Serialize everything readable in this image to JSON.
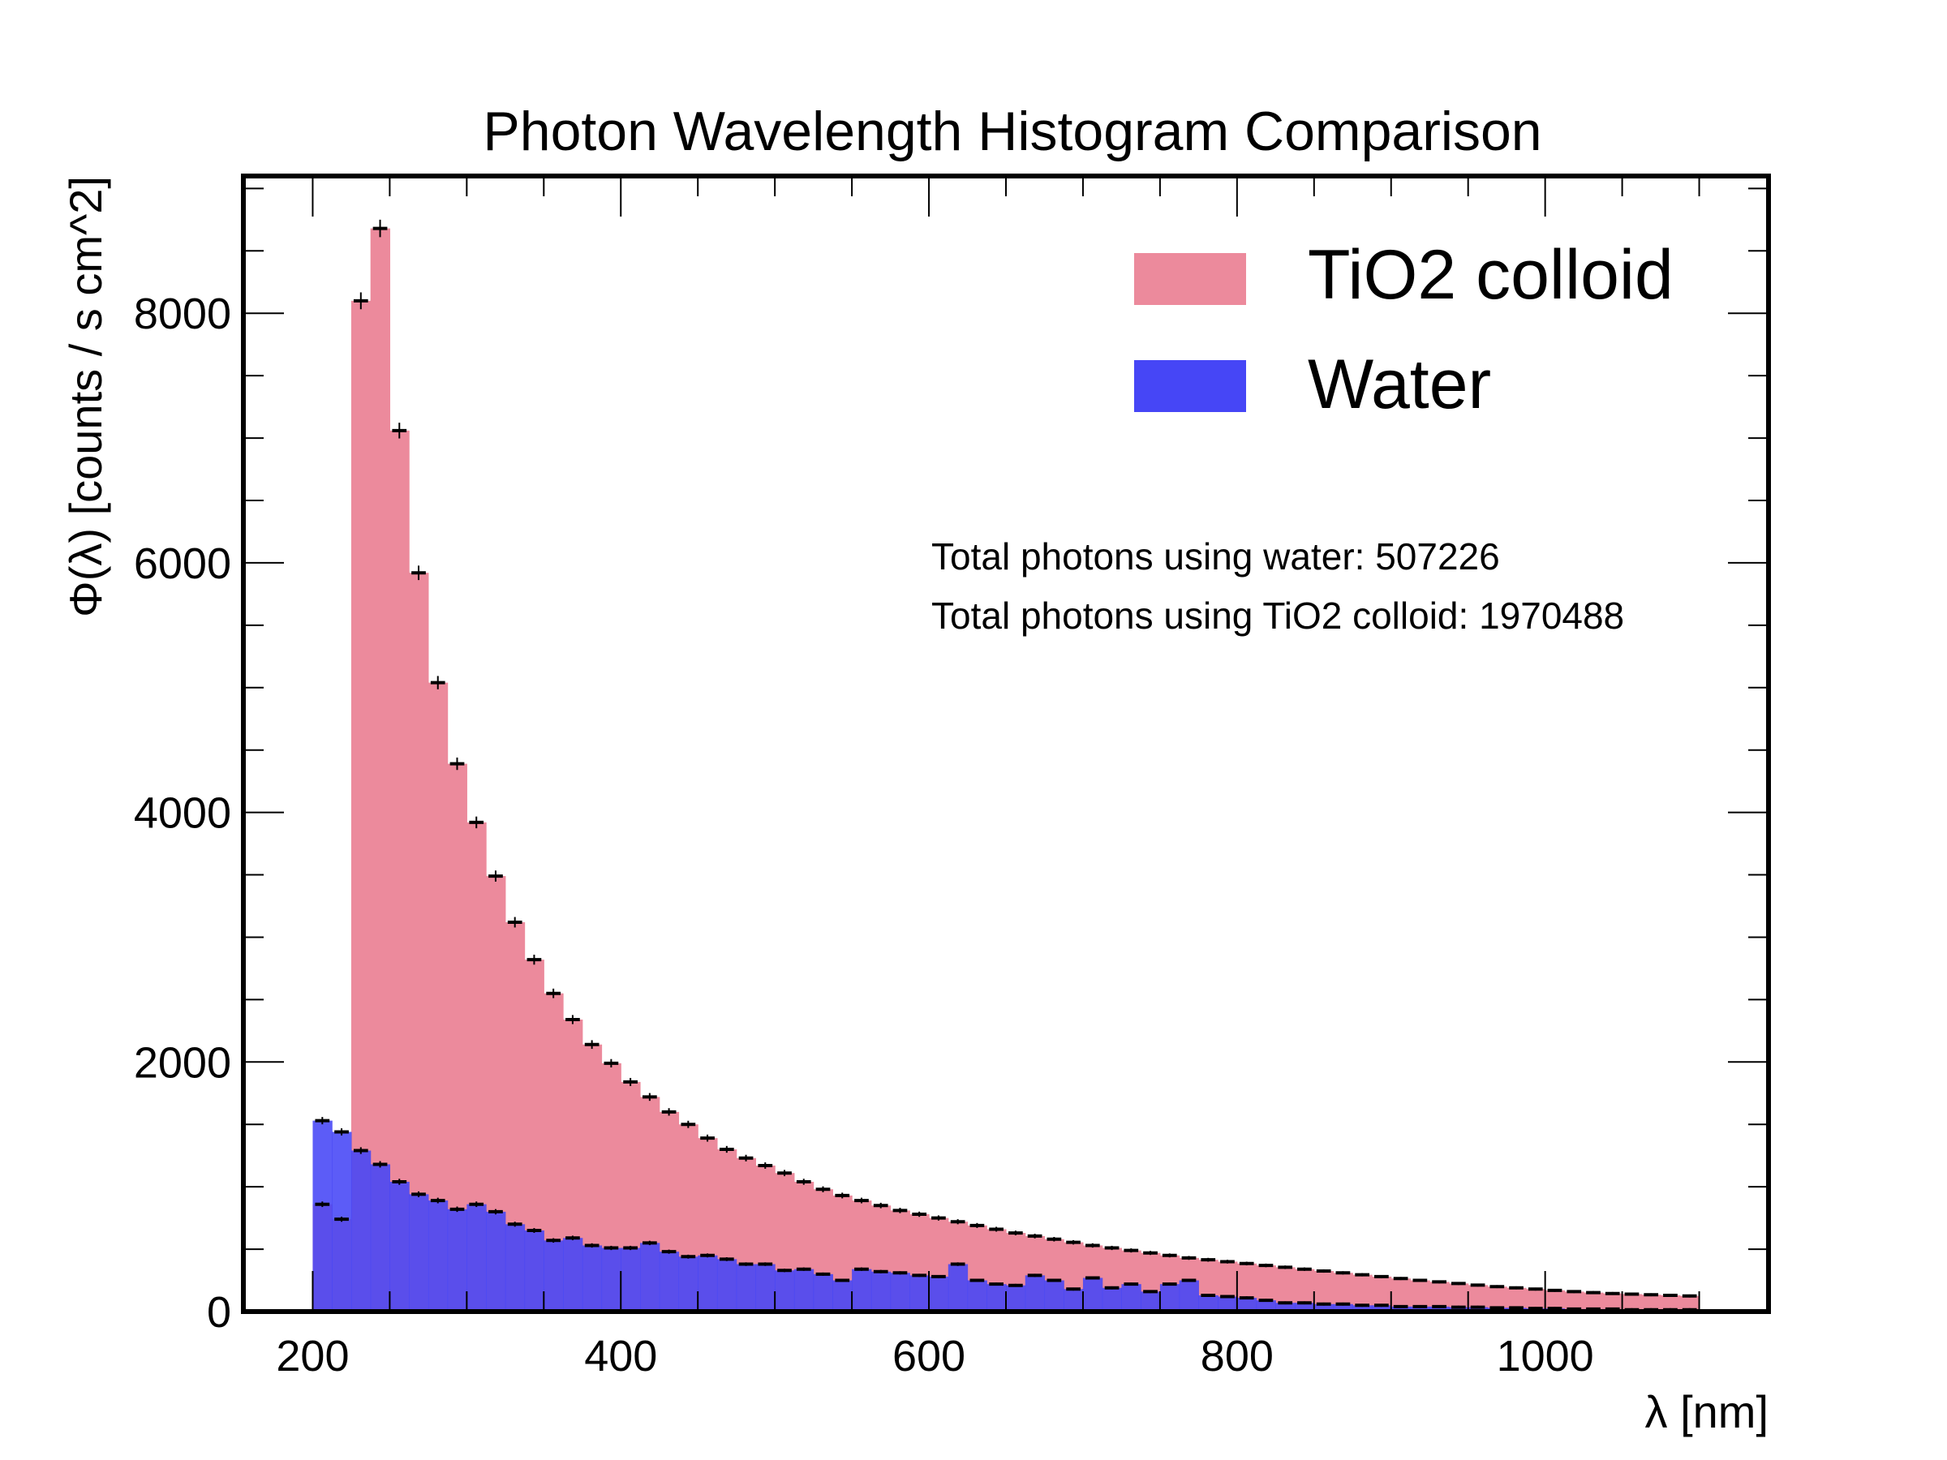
{
  "chart_data": {
    "type": "bar",
    "histogram": true,
    "title": "Photon Wavelength Histogram Comparison",
    "xlabel": "λ [nm]",
    "ylabel": "Φ(λ) [counts / s cm^2]",
    "xlim": [
      155,
      1145
    ],
    "ylim": [
      0,
      9100
    ],
    "x_ticks": [
      200,
      400,
      600,
      800,
      1000
    ],
    "x_tick_labels": [
      "200",
      "400",
      "600",
      "800",
      "1000"
    ],
    "y_ticks": [
      0,
      2000,
      4000,
      6000,
      8000
    ],
    "y_tick_labels": [
      "0",
      "2000",
      "4000",
      "6000",
      "8000"
    ],
    "bin_start": 200,
    "bin_width": 12.5,
    "legend_position": "top-right",
    "annotations": [
      "Total photons using water: 507226",
      "Total photons using TiO2 colloid: 1970488"
    ],
    "series": [
      {
        "name": "TiO2 colloid",
        "color": "#ec8a9c",
        "values": [
          860,
          740,
          8100,
          8680,
          7060,
          5920,
          5040,
          4390,
          3920,
          3490,
          3120,
          2820,
          2550,
          2340,
          2140,
          1990,
          1840,
          1720,
          1600,
          1500,
          1390,
          1300,
          1230,
          1170,
          1110,
          1040,
          980,
          930,
          890,
          850,
          810,
          780,
          750,
          720,
          690,
          660,
          630,
          605,
          580,
          555,
          530,
          510,
          490,
          470,
          450,
          430,
          415,
          400,
          385,
          370,
          355,
          340,
          325,
          310,
          295,
          280,
          265,
          250,
          238,
          225,
          212,
          200,
          190,
          180,
          170,
          160,
          152,
          145,
          140,
          135,
          130,
          125
        ]
      },
      {
        "name": "Water",
        "color": "#4646f6",
        "values": [
          1530,
          1440,
          1290,
          1180,
          1040,
          940,
          890,
          820,
          860,
          800,
          700,
          650,
          570,
          590,
          530,
          510,
          510,
          550,
          480,
          440,
          450,
          420,
          380,
          380,
          330,
          340,
          300,
          250,
          340,
          320,
          310,
          290,
          280,
          380,
          250,
          220,
          210,
          290,
          250,
          180,
          270,
          190,
          220,
          160,
          220,
          250,
          130,
          120,
          110,
          90,
          70,
          70,
          60,
          60,
          50,
          50,
          40,
          40,
          40,
          35,
          35,
          30,
          30,
          25,
          25,
          20,
          20,
          20,
          15,
          15,
          15,
          15
        ]
      }
    ]
  }
}
